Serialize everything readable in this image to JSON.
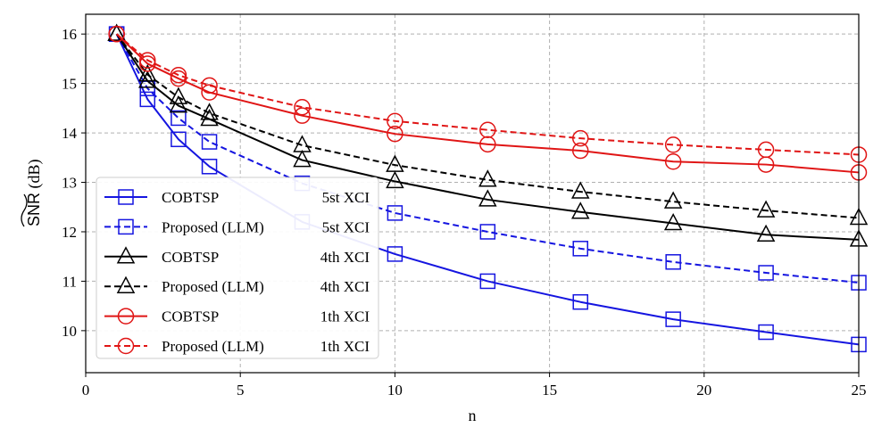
{
  "chart_data": {
    "type": "line",
    "title": "",
    "xlabel": "n",
    "ylabel": {
      "main": "SNR",
      "unit": "(dB)"
    },
    "xlim": [
      0,
      25
    ],
    "ylim": [
      9.15,
      16.4
    ],
    "xticks": [
      0,
      5,
      10,
      15,
      20,
      25
    ],
    "yticks": [
      10,
      11,
      12,
      13,
      14,
      15,
      16
    ],
    "grid": true,
    "legend_position": "lower-left",
    "series": [
      {
        "name": "COBTSP",
        "suffix": "5st XCI",
        "color": "#1515e0",
        "marker": "square",
        "linestyle": "solid",
        "x": [
          1,
          2,
          3,
          4,
          7,
          10,
          13,
          16,
          19,
          22,
          25
        ],
        "y": [
          16.0,
          14.68,
          13.87,
          13.32,
          12.2,
          11.55,
          11.0,
          10.58,
          10.23,
          9.97,
          9.72
        ]
      },
      {
        "name": "Proposed (LLM)",
        "suffix": "5st XCI",
        "color": "#1515e0",
        "marker": "square",
        "linestyle": "dashed",
        "x": [
          1,
          2,
          3,
          4,
          7,
          10,
          13,
          16,
          19,
          22,
          25
        ],
        "y": [
          16.0,
          14.9,
          14.3,
          13.82,
          12.98,
          12.38,
          12.0,
          11.66,
          11.39,
          11.17,
          10.97
        ]
      },
      {
        "name": "COBTSP",
        "suffix": "4th XCI",
        "color": "#000000",
        "marker": "triangle",
        "linestyle": "solid",
        "x": [
          1,
          2,
          3,
          4,
          7,
          10,
          13,
          16,
          19,
          22,
          25
        ],
        "y": [
          16.0,
          15.05,
          14.55,
          14.28,
          13.45,
          13.02,
          12.65,
          12.4,
          12.17,
          11.94,
          11.84
        ]
      },
      {
        "name": "Proposed (LLM)",
        "suffix": "4th XCI",
        "color": "#000000",
        "marker": "triangle",
        "linestyle": "dashed",
        "x": [
          1,
          2,
          3,
          4,
          7,
          10,
          13,
          16,
          19,
          22,
          25
        ],
        "y": [
          16.0,
          15.18,
          14.72,
          14.4,
          13.75,
          13.35,
          13.05,
          12.81,
          12.61,
          12.43,
          12.28
        ]
      },
      {
        "name": "COBTSP",
        "suffix": "1th XCI",
        "color": "#e01515",
        "marker": "circle",
        "linestyle": "solid",
        "x": [
          1,
          2,
          3,
          4,
          7,
          10,
          13,
          16,
          19,
          22,
          25
        ],
        "y": [
          16.0,
          15.4,
          15.1,
          14.82,
          14.35,
          13.98,
          13.77,
          13.64,
          13.42,
          13.36,
          13.2
        ]
      },
      {
        "name": "Proposed (LLM)",
        "suffix": "1th XCI",
        "color": "#e01515",
        "marker": "circle",
        "linestyle": "dashed",
        "x": [
          1,
          2,
          3,
          4,
          7,
          10,
          13,
          16,
          19,
          22,
          25
        ],
        "y": [
          16.0,
          15.47,
          15.17,
          14.96,
          14.52,
          14.24,
          14.06,
          13.89,
          13.76,
          13.66,
          13.56
        ]
      }
    ]
  }
}
